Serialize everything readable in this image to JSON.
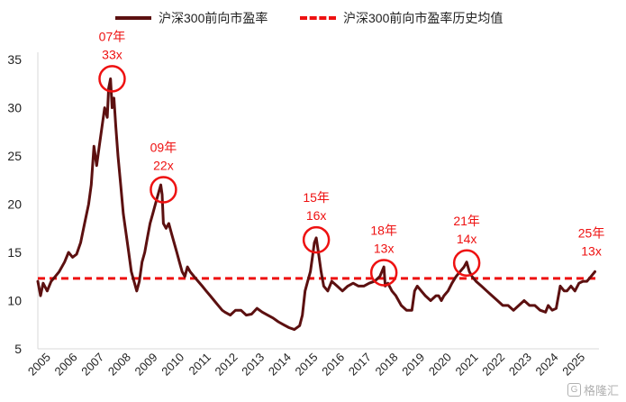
{
  "chart_data": {
    "type": "line",
    "legend": {
      "position": "top",
      "items": [
        {
          "label": "沪深300前向市盈率",
          "color": "#5c1010",
          "style": "solid"
        },
        {
          "label": "沪深300前向市盈率历史均值",
          "color": "#ee1111",
          "style": "dashed"
        }
      ]
    },
    "xlabel": "",
    "ylabel": "",
    "x_ticks": [
      "2005",
      "2006",
      "2007",
      "2008",
      "2009",
      "2010",
      "2011",
      "2012",
      "2013",
      "2014",
      "2015",
      "2016",
      "2017",
      "2018",
      "2019",
      "2020",
      "2021",
      "2022",
      "2023",
      "2024",
      "2025"
    ],
    "xlim": [
      2005.0,
      2026.0
    ],
    "ylim": [
      5,
      35
    ],
    "y_ticks": [
      5,
      10,
      15,
      20,
      25,
      30,
      35
    ],
    "grid": false,
    "series": [
      {
        "name": "沪深300前向市盈率",
        "color": "#5c1010",
        "x": [
          2005.0,
          2005.1,
          2005.2,
          2005.35,
          2005.5,
          2005.65,
          2005.8,
          2006.0,
          2006.15,
          2006.3,
          2006.45,
          2006.6,
          2006.75,
          2006.9,
          2007.0,
          2007.1,
          2007.2,
          2007.3,
          2007.4,
          2007.5,
          2007.6,
          2007.65,
          2007.72,
          2007.78,
          2007.85,
          2007.92,
          2008.0,
          2008.1,
          2008.2,
          2008.3,
          2008.4,
          2008.5,
          2008.6,
          2008.7,
          2008.8,
          2008.9,
          2009.0,
          2009.1,
          2009.2,
          2009.3,
          2009.4,
          2009.5,
          2009.6,
          2009.65,
          2009.7,
          2009.8,
          2009.9,
          2010.0,
          2010.1,
          2010.2,
          2010.3,
          2010.4,
          2010.5,
          2010.6,
          2010.7,
          2010.85,
          2011.0,
          2011.15,
          2011.3,
          2011.45,
          2011.6,
          2011.75,
          2011.9,
          2012.0,
          2012.2,
          2012.4,
          2012.6,
          2012.8,
          2013.0,
          2013.2,
          2013.4,
          2013.6,
          2013.8,
          2014.0,
          2014.2,
          2014.4,
          2014.6,
          2014.8,
          2014.9,
          2015.0,
          2015.1,
          2015.2,
          2015.3,
          2015.35,
          2015.42,
          2015.5,
          2015.6,
          2015.7,
          2015.85,
          2016.0,
          2016.2,
          2016.4,
          2016.6,
          2016.8,
          2017.0,
          2017.2,
          2017.4,
          2017.6,
          2017.8,
          2017.95,
          2018.0,
          2018.1,
          2018.25,
          2018.4,
          2018.6,
          2018.8,
          2019.0,
          2019.1,
          2019.2,
          2019.35,
          2019.5,
          2019.7,
          2019.9,
          2020.0,
          2020.1,
          2020.2,
          2020.35,
          2020.5,
          2020.65,
          2020.8,
          2020.95,
          2021.05,
          2021.15,
          2021.25,
          2021.4,
          2021.6,
          2021.8,
          2022.0,
          2022.2,
          2022.4,
          2022.6,
          2022.8,
          2023.0,
          2023.2,
          2023.4,
          2023.6,
          2023.8,
          2024.0,
          2024.1,
          2024.25,
          2024.4,
          2024.55,
          2024.7,
          2024.8,
          2024.95,
          2025.1,
          2025.25,
          2025.4,
          2025.55,
          2025.7,
          2025.85
        ],
        "values": [
          12.0,
          10.5,
          11.8,
          11.0,
          12.0,
          12.5,
          13.0,
          14.0,
          15.0,
          14.5,
          14.8,
          16.0,
          18.0,
          20.0,
          22.0,
          26.0,
          24.0,
          26.0,
          28.0,
          30.0,
          29.0,
          32.0,
          33.0,
          30.0,
          31.0,
          28.0,
          25.0,
          22.0,
          19.0,
          17.0,
          15.0,
          13.0,
          12.0,
          11.0,
          12.0,
          14.0,
          15.0,
          16.5,
          18.0,
          19.0,
          20.0,
          21.0,
          22.0,
          21.0,
          18.0,
          17.5,
          18.0,
          17.0,
          16.0,
          15.0,
          14.0,
          13.0,
          12.5,
          13.5,
          13.0,
          12.5,
          12.0,
          11.5,
          11.0,
          10.5,
          10.0,
          9.5,
          9.0,
          8.8,
          8.5,
          9.0,
          9.0,
          8.5,
          8.6,
          9.2,
          8.8,
          8.5,
          8.2,
          7.8,
          7.5,
          7.2,
          7.0,
          7.4,
          8.5,
          11.0,
          12.0,
          13.0,
          15.0,
          16.0,
          16.5,
          15.0,
          13.0,
          11.5,
          11.0,
          12.0,
          11.5,
          11.0,
          11.5,
          11.8,
          11.5,
          11.5,
          11.8,
          12.0,
          12.5,
          13.5,
          11.5,
          11.8,
          11.0,
          10.5,
          9.5,
          9.0,
          9.0,
          11.0,
          11.5,
          11.0,
          10.5,
          10.0,
          10.5,
          10.5,
          10.0,
          10.5,
          11.0,
          11.8,
          12.5,
          13.0,
          13.5,
          14.0,
          13.0,
          12.5,
          12.0,
          11.5,
          11.0,
          10.5,
          10.0,
          9.5,
          9.5,
          9.0,
          9.5,
          10.0,
          9.5,
          9.5,
          9.0,
          8.8,
          9.5,
          9.0,
          9.2,
          11.5,
          11.0,
          11.0,
          11.5,
          11.0,
          11.8,
          12.0,
          12.0,
          12.5,
          13.0
        ]
      },
      {
        "name": "沪深300前向市盈率历史均值",
        "color": "#ee1111",
        "x": [
          2005.0,
          2026.0
        ],
        "values": [
          12.3,
          12.3
        ]
      }
    ],
    "annotations": [
      {
        "year_label": "07年",
        "value_label": "33x",
        "x": 2007.78,
        "y": 33.0
      },
      {
        "year_label": "09年",
        "value_label": "22x",
        "x": 2009.7,
        "y": 21.5
      },
      {
        "year_label": "15年",
        "value_label": "16x",
        "x": 2015.42,
        "y": 16.3
      },
      {
        "year_label": "18年",
        "value_label": "13x",
        "x": 2017.95,
        "y": 12.9
      },
      {
        "year_label": "21年",
        "value_label": "14x",
        "x": 2021.05,
        "y": 13.9
      },
      {
        "year_label": "25年",
        "value_label": "13x",
        "x": 2025.85,
        "y": 12.6
      }
    ]
  },
  "watermark": {
    "icon": "gelonghui-logo-icon",
    "icon_glyph": "G",
    "text": "格隆汇"
  }
}
